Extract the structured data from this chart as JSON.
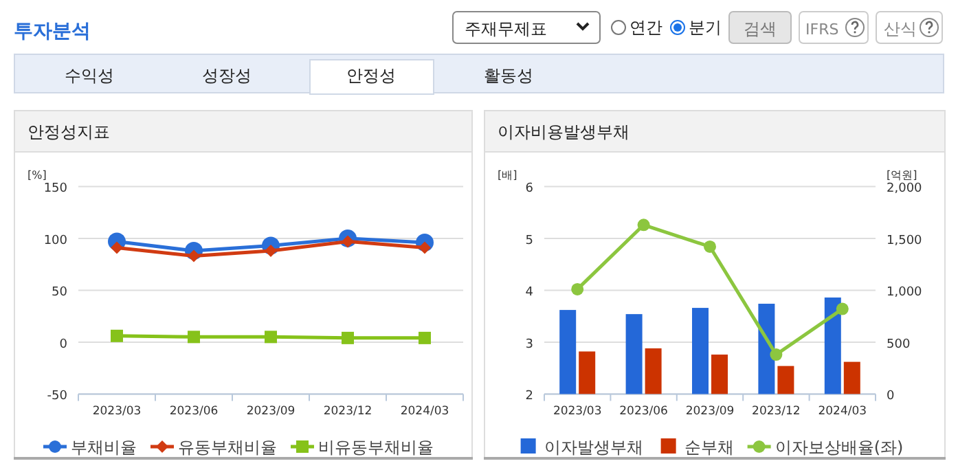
{
  "chart_data": [
    {
      "type": "other",
      "title": "투자분석",
      "annotations": [
        "주재무제표",
        "연간",
        "분기",
        "검색",
        "IFRS",
        "산식",
        "수익성",
        "성장성",
        "안정성",
        "활동성"
      ]
    },
    {
      "type": "line",
      "title": "안정성지표",
      "ylabel": "[%]",
      "categories": [
        "2023/03",
        "2023/06",
        "2023/09",
        "2023/12",
        "2024/03"
      ],
      "ylim": [
        -50,
        150
      ],
      "yticks": [
        -50,
        0,
        50,
        100,
        150
      ],
      "grid": "y",
      "legend": "bottom",
      "series": [
        {
          "name": "부채비율",
          "color": "#2a6fd8",
          "marker": "circle",
          "values": [
            97,
            88,
            93,
            100,
            96
          ]
        },
        {
          "name": "유동부채비율",
          "color": "#d13b12",
          "marker": "diamond",
          "values": [
            91,
            83,
            88,
            97,
            91
          ]
        },
        {
          "name": "비유동부채비율",
          "color": "#86c21a",
          "marker": "square",
          "values": [
            6,
            5,
            5,
            4,
            4
          ]
        }
      ]
    },
    {
      "type": "bar",
      "title": "이자비용발생부채",
      "ylabel": "[배]",
      "y2label": "[억원]",
      "categories": [
        "2023/03",
        "2023/06",
        "2023/09",
        "2023/12",
        "2024/03"
      ],
      "ylim": [
        2,
        6
      ],
      "yticks": [
        2,
        3,
        4,
        5,
        6
      ],
      "y2lim": [
        0,
        2000
      ],
      "y2ticks": [
        0,
        500,
        {
          "value": 1000,
          "label": "1,000"
        },
        {
          "value": 1500,
          "label": "1,500"
        },
        {
          "value": 2000,
          "label": "2,000"
        }
      ],
      "grid": "y",
      "legend": "bottom",
      "series": [
        {
          "name": "이자발생부채",
          "color": "#2468d8",
          "axis": "y2",
          "values": [
            810,
            770,
            830,
            870,
            930
          ]
        },
        {
          "name": "순부채",
          "color": "#cc3300",
          "axis": "y2",
          "values": [
            410,
            440,
            380,
            270,
            310
          ]
        },
        {
          "name": "이자보상배율(좌)",
          "type": "line",
          "color": "#8cc63f",
          "marker": "circle",
          "axis": "y",
          "values": [
            4.02,
            5.26,
            4.84,
            2.76,
            3.64
          ]
        }
      ]
    }
  ]
}
